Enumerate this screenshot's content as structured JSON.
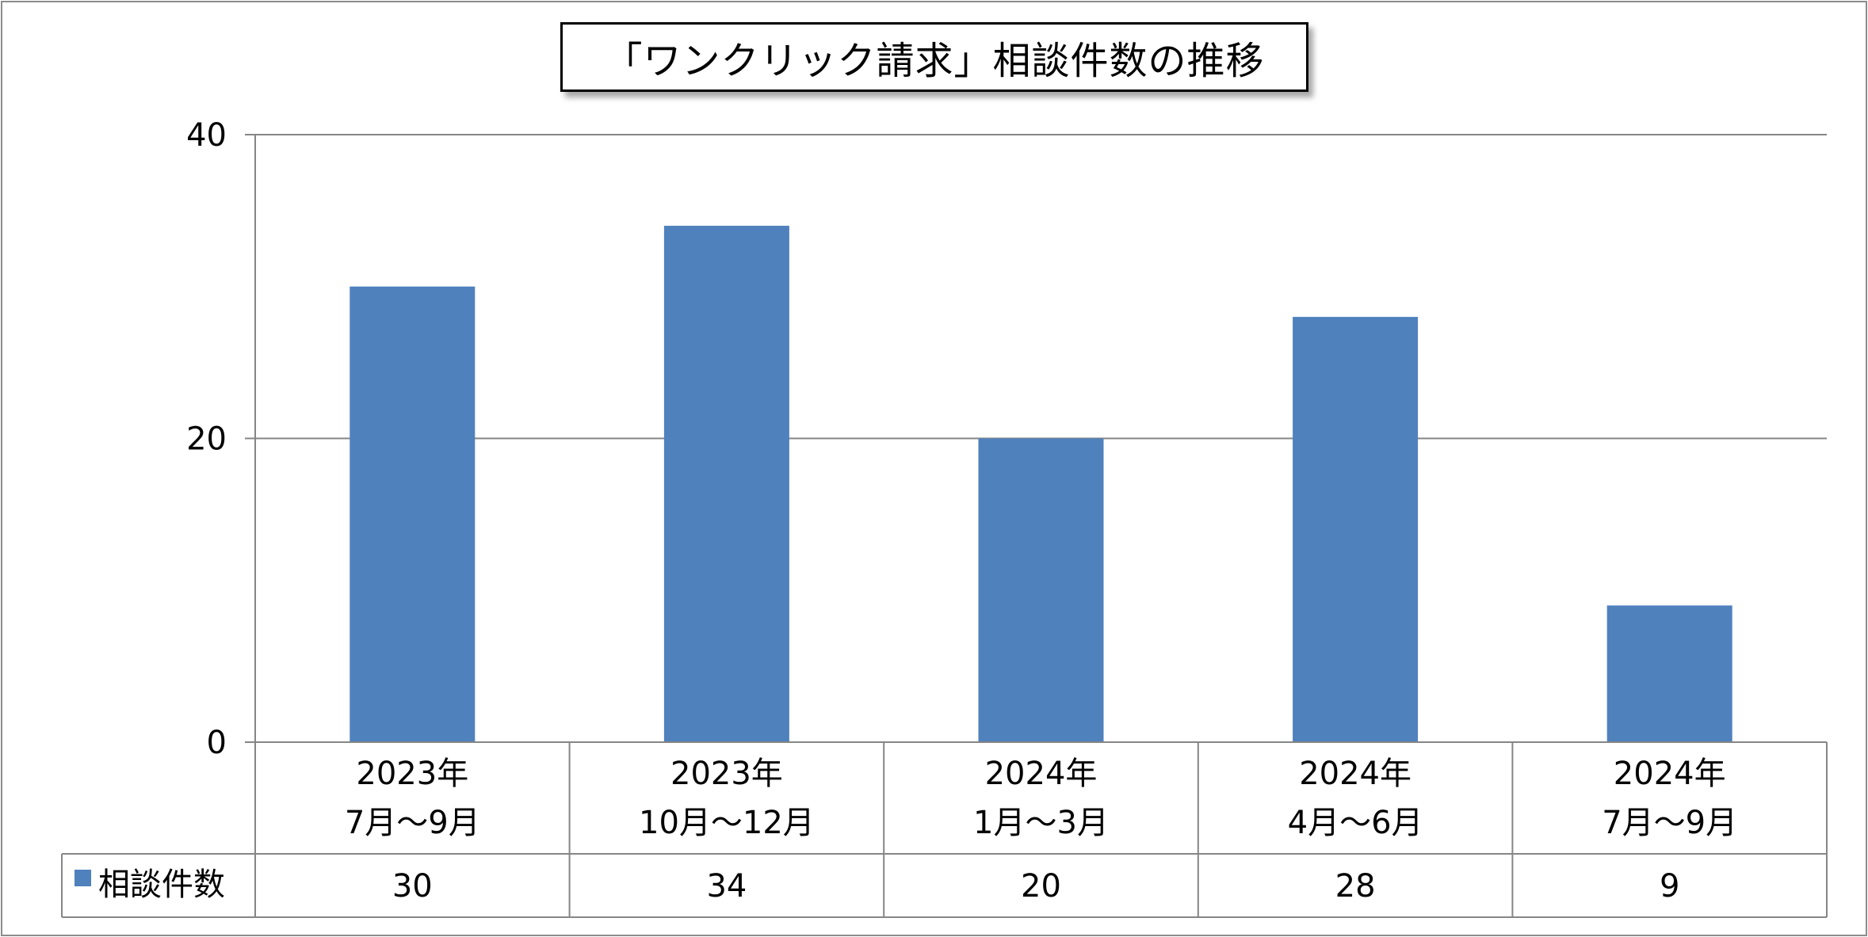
{
  "chart_data": {
    "type": "bar",
    "title": "「ワンクリック請求」相談件数の推移",
    "categories": [
      [
        "2023年",
        "7月～9月"
      ],
      [
        "2023年",
        "10月～12月"
      ],
      [
        "2024年",
        "1月～3月"
      ],
      [
        "2024年",
        "4月～6月"
      ],
      [
        "2024年",
        "7月～9月"
      ]
    ],
    "series": [
      {
        "name": "相談件数",
        "values": [
          30,
          34,
          20,
          28,
          9
        ],
        "color": "#4f81bd"
      }
    ],
    "ylim": [
      0,
      40
    ],
    "yticks": [
      0,
      20,
      40
    ],
    "grid": true,
    "legend": "data-table",
    "data_table": true
  }
}
